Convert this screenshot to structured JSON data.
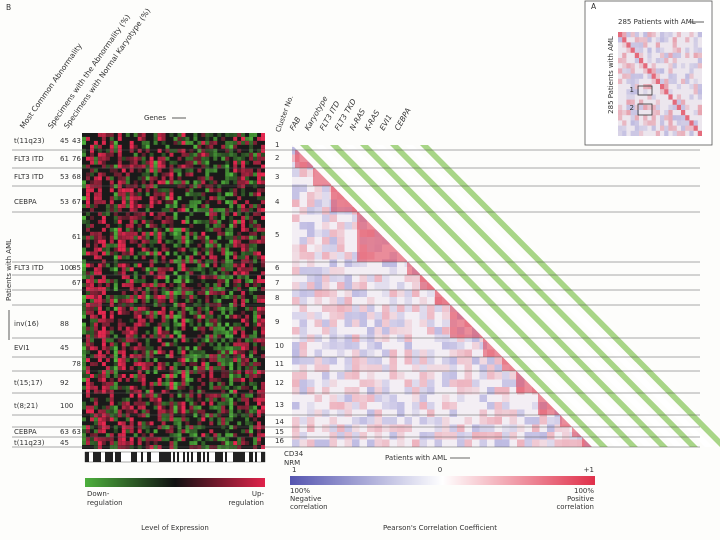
{
  "panel_b": {
    "label": "B",
    "column_headers": [
      "Most Common Abnormality",
      "Specimens with the Abnormality (%)",
      "Specimens with Normal Karyotype (%)"
    ],
    "genes_label": "Genes",
    "cluster_header": "Cluster No.",
    "annotation_headers": [
      "FAB",
      "Karyotype",
      "FLT3 ITD",
      "FLT3 TKD",
      "N-RAS",
      "K-RAS",
      "EVI1",
      "CEBPA"
    ],
    "y_axis_label": "Patients with AML",
    "rows": [
      {
        "abnormality": "t(11q23)",
        "pct_abnormality": "45",
        "pct_normal": "43"
      },
      {
        "abnormality": "FLT3 ITD",
        "pct_abnormality": "61",
        "pct_normal": "76"
      },
      {
        "abnormality": "FLT3 ITD",
        "pct_abnormality": "53",
        "pct_normal": "68"
      },
      {
        "abnormality": "CEBPA",
        "pct_abnormality": "53",
        "pct_normal": "67"
      },
      {
        "pct_normal": "61"
      },
      {
        "abnormality": "FLT3 ITD",
        "pct_abnormality": "100",
        "pct_normal": "85"
      },
      {
        "pct_normal": "67"
      },
      {
        "abnormality": "inv(16)",
        "pct_abnormality": "88"
      },
      {
        "abnormality": "EVI1",
        "pct_abnormality": "45"
      },
      {
        "pct_normal": "78"
      },
      {
        "abnormality": "t(15;17)",
        "pct_abnormality": "92"
      },
      {
        "abnormality": "t(8;21)",
        "pct_abnormality": "100"
      },
      {
        "abnormality": "CEBPA",
        "pct_abnormality": "63",
        "pct_normal": "63"
      },
      {
        "abnormality": "t(11q23)",
        "pct_abnormality": "45"
      }
    ],
    "clusters": [
      "1",
      "2",
      "3",
      "4",
      "5",
      "6",
      "7",
      "8",
      "9",
      "10",
      "11",
      "12",
      "13",
      "14",
      "15",
      "16"
    ],
    "bottom_labels": [
      "CD34",
      "NRM"
    ],
    "x_axis_label": "Patients with AML",
    "expression_legend": {
      "low": [
        "Down-",
        "regulation"
      ],
      "high": [
        "Up-",
        "regulation"
      ],
      "title": "Level of Expression"
    },
    "correlation_legend": {
      "min": "1",
      "mid": "0",
      "max": "+1",
      "low_note": [
        "100%",
        "Negative",
        "correlation"
      ],
      "high_note": [
        "100%",
        "Positive",
        "correlation"
      ],
      "title": "Pearson's Correlation Coefficient"
    }
  },
  "panel_a": {
    "label": "A",
    "x_label": "285 Patients with AML",
    "y_label": "285 Patients with AML",
    "boxes": [
      "1",
      "2"
    ]
  }
}
